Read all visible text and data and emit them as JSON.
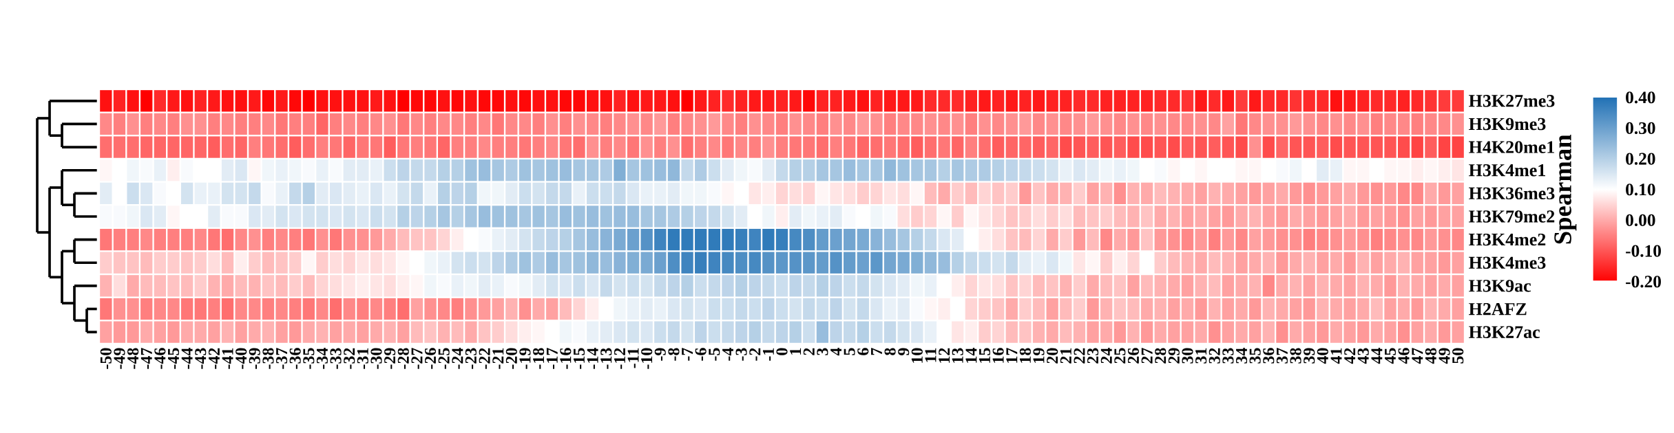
{
  "chart_data": {
    "type": "heatmap",
    "categories": [
      "-50",
      "-49",
      "-48",
      "-47",
      "-46",
      "-45",
      "-44",
      "-43",
      "-42",
      "-41",
      "-40",
      "-39",
      "-38",
      "-37",
      "-36",
      "-35",
      "-34",
      "-33",
      "-32",
      "-31",
      "-30",
      "-29",
      "-28",
      "-27",
      "-26",
      "-25",
      "-24",
      "-23",
      "-22",
      "-21",
      "-20",
      "-19",
      "-18",
      "-17",
      "-16",
      "-15",
      "-14",
      "-13",
      "-12",
      "-11",
      "-10",
      "-9",
      "-8",
      "-7",
      "-6",
      "-5",
      "-4",
      "-3",
      "-2",
      "-1",
      "0",
      "1",
      "2",
      "3",
      "4",
      "5",
      "6",
      "7",
      "8",
      "9",
      "10",
      "11",
      "12",
      "13",
      "14",
      "15",
      "16",
      "17",
      "18",
      "19",
      "20",
      "21",
      "22",
      "23",
      "24",
      "25",
      "26",
      "27",
      "28",
      "29",
      "30",
      "31",
      "32",
      "33",
      "34",
      "35",
      "36",
      "37",
      "38",
      "39",
      "40",
      "41",
      "42",
      "43",
      "44",
      "45",
      "46",
      "47",
      "48",
      "49",
      "50"
    ],
    "y_categories": [
      "H3K27me3",
      "H3K9me3",
      "H4K20me1",
      "H3K4me1",
      "H3K36me3",
      "H3K79me2",
      "H3K4me2",
      "H3K4me3",
      "H3K9ac",
      "H2AFZ",
      "H3K27ac"
    ],
    "cells": [
      [
        -0.18,
        -0.16,
        -0.18,
        -0.2,
        -0.15,
        -0.17,
        -0.18,
        -0.16,
        -0.17,
        -0.18,
        -0.18,
        -0.17,
        -0.19,
        -0.17,
        -0.19,
        -0.2,
        -0.18,
        -0.18,
        -0.18,
        -0.18,
        -0.17,
        -0.18,
        -0.2,
        -0.19,
        -0.19,
        -0.18,
        -0.19,
        -0.18,
        -0.19,
        -0.19,
        -0.18,
        -0.19,
        -0.18,
        -0.18,
        -0.19,
        -0.19,
        -0.18,
        -0.18,
        -0.16,
        -0.18,
        -0.17,
        -0.17,
        -0.18,
        -0.2,
        -0.17,
        -0.16,
        -0.15,
        -0.16,
        -0.17,
        -0.17,
        -0.16,
        -0.17,
        -0.19,
        -0.16,
        -0.16,
        -0.17,
        -0.18,
        -0.16,
        -0.17,
        -0.17,
        -0.17,
        -0.15,
        -0.15,
        -0.15,
        -0.16,
        -0.17,
        -0.16,
        -0.17,
        -0.16,
        -0.17,
        -0.16,
        -0.16,
        -0.15,
        -0.15,
        -0.16,
        -0.16,
        -0.16,
        -0.16,
        -0.15,
        -0.15,
        -0.14,
        -0.17,
        -0.15,
        -0.17,
        -0.13,
        -0.17,
        -0.15,
        -0.15,
        -0.14,
        -0.15,
        -0.15,
        -0.18,
        -0.17,
        -0.16,
        -0.15,
        -0.15,
        -0.16,
        -0.15,
        -0.14,
        -0.13,
        -0.13
      ],
      [
        -0.04,
        -0.05,
        -0.03,
        -0.05,
        -0.04,
        -0.05,
        -0.03,
        -0.03,
        -0.05,
        -0.04,
        -0.05,
        -0.05,
        -0.04,
        -0.06,
        -0.05,
        -0.05,
        -0.08,
        -0.05,
        -0.04,
        -0.05,
        -0.04,
        -0.03,
        -0.06,
        -0.04,
        -0.05,
        -0.04,
        -0.04,
        -0.05,
        -0.04,
        -0.06,
        -0.04,
        -0.04,
        -0.05,
        -0.03,
        -0.05,
        -0.03,
        -0.04,
        -0.05,
        -0.04,
        -0.03,
        -0.04,
        -0.02,
        -0.05,
        -0.04,
        -0.03,
        -0.02,
        -0.04,
        -0.05,
        -0.03,
        -0.04,
        -0.05,
        -0.03,
        -0.04,
        -0.05,
        -0.03,
        -0.04,
        -0.02,
        -0.03,
        -0.05,
        -0.04,
        -0.04,
        -0.03,
        -0.04,
        -0.03,
        -0.05,
        -0.03,
        -0.04,
        -0.03,
        -0.02,
        -0.04,
        -0.03,
        -0.04,
        -0.03,
        -0.02,
        -0.03,
        -0.04,
        -0.03,
        -0.04,
        -0.03,
        -0.04,
        -0.04,
        -0.03,
        -0.04,
        -0.01,
        -0.06,
        -0.04,
        -0.03,
        -0.03,
        -0.02,
        -0.03,
        -0.04,
        -0.03,
        -0.04,
        -0.03,
        -0.05,
        -0.04,
        -0.04,
        -0.05,
        -0.04,
        -0.04,
        -0.03
      ],
      [
        -0.07,
        -0.07,
        -0.07,
        -0.08,
        -0.08,
        -0.08,
        -0.08,
        -0.08,
        -0.09,
        -0.07,
        -0.08,
        -0.05,
        -0.06,
        -0.07,
        -0.09,
        -0.07,
        -0.05,
        -0.06,
        -0.08,
        -0.06,
        -0.06,
        -0.09,
        -0.06,
        -0.05,
        -0.06,
        -0.08,
        -0.05,
        -0.05,
        -0.04,
        -0.05,
        -0.05,
        -0.06,
        -0.05,
        -0.04,
        -0.06,
        -0.07,
        -0.03,
        -0.05,
        -0.04,
        -0.06,
        -0.03,
        -0.05,
        -0.03,
        -0.07,
        -0.05,
        -0.04,
        -0.06,
        -0.04,
        -0.05,
        -0.03,
        -0.05,
        -0.06,
        -0.06,
        -0.07,
        -0.05,
        -0.06,
        -0.08,
        -0.07,
        -0.06,
        -0.07,
        -0.09,
        -0.07,
        -0.06,
        -0.08,
        -0.05,
        -0.07,
        -0.09,
        -0.08,
        -0.08,
        -0.09,
        -0.08,
        -0.11,
        -0.1,
        -0.09,
        -0.1,
        -0.09,
        -0.11,
        -0.11,
        -0.1,
        -0.11,
        -0.09,
        -0.1,
        -0.09,
        -0.1,
        -0.11,
        -0.03,
        -0.11,
        -0.08,
        -0.1,
        -0.1,
        -0.09,
        -0.11,
        -0.1,
        -0.1,
        -0.1,
        -0.1,
        -0.11,
        -0.12,
        -0.09,
        -0.12,
        -0.12
      ],
      [
        0.09,
        0.1,
        0.12,
        0.11,
        0.13,
        0.08,
        0.11,
        0.1,
        0.1,
        0.14,
        0.15,
        0.09,
        0.12,
        0.13,
        0.12,
        0.11,
        0.13,
        0.11,
        0.14,
        0.14,
        0.13,
        0.17,
        0.19,
        0.18,
        0.18,
        0.2,
        0.2,
        0.23,
        0.24,
        0.22,
        0.21,
        0.23,
        0.22,
        0.23,
        0.24,
        0.22,
        0.22,
        0.21,
        0.27,
        0.22,
        0.23,
        0.24,
        0.25,
        0.18,
        0.21,
        0.17,
        0.14,
        0.12,
        0.11,
        0.14,
        0.18,
        0.2,
        0.2,
        0.22,
        0.22,
        0.24,
        0.22,
        0.22,
        0.25,
        0.23,
        0.22,
        0.22,
        0.2,
        0.22,
        0.21,
        0.21,
        0.2,
        0.19,
        0.18,
        0.17,
        0.16,
        0.13,
        0.15,
        0.14,
        0.12,
        0.13,
        0.12,
        0.1,
        0.11,
        0.09,
        0.1,
        0.09,
        0.1,
        0.1,
        0.09,
        0.09,
        0.1,
        0.11,
        0.12,
        0.1,
        0.14,
        0.13,
        0.09,
        0.09,
        0.1,
        0.09,
        0.09,
        0.08,
        0.09,
        0.08,
        0.07
      ],
      [
        0.14,
        0.1,
        0.17,
        0.15,
        0.11,
        0.1,
        0.16,
        0.13,
        0.13,
        0.16,
        0.16,
        0.18,
        0.11,
        0.13,
        0.18,
        0.2,
        0.14,
        0.15,
        0.14,
        0.13,
        0.15,
        0.13,
        0.16,
        0.18,
        0.13,
        0.2,
        0.19,
        0.2,
        0.12,
        0.12,
        0.14,
        0.17,
        0.16,
        0.18,
        0.18,
        0.13,
        0.17,
        0.17,
        0.18,
        0.15,
        0.13,
        0.13,
        0.14,
        0.12,
        0.12,
        0.11,
        0.09,
        0.1,
        0.07,
        0.08,
        0.05,
        0.06,
        0.05,
        0.09,
        0.07,
        0.06,
        0.04,
        0.05,
        0.07,
        0.06,
        0.09,
        0.02,
        0.0,
        0.04,
        0.02,
        0.05,
        0.03,
        0.04,
        -0.02,
        0.03,
        0.0,
        0.01,
        0.04,
        -0.01,
        0.01,
        -0.03,
        0.01,
        0.0,
        0.02,
        0.01,
        0.0,
        -0.01,
        0.01,
        0.0,
        -0.01,
        -0.02,
        -0.01,
        0.0,
        -0.02,
        -0.03,
        -0.02,
        -0.01,
        0.0,
        -0.02,
        -0.03,
        -0.02,
        -0.04,
        -0.04,
        0.0,
        -0.02,
        -0.01
      ],
      [
        0.11,
        0.11,
        0.12,
        0.15,
        0.14,
        0.09,
        0.1,
        0.1,
        0.14,
        0.11,
        0.11,
        0.15,
        0.14,
        0.16,
        0.15,
        0.16,
        0.16,
        0.15,
        0.16,
        0.15,
        0.17,
        0.16,
        0.2,
        0.19,
        0.2,
        0.22,
        0.2,
        0.22,
        0.24,
        0.23,
        0.23,
        0.22,
        0.23,
        0.22,
        0.24,
        0.23,
        0.24,
        0.23,
        0.24,
        0.24,
        0.22,
        0.22,
        0.21,
        0.2,
        0.19,
        0.18,
        0.16,
        0.14,
        0.1,
        0.12,
        0.08,
        0.14,
        0.12,
        0.13,
        0.14,
        0.11,
        0.1,
        0.12,
        0.11,
        0.06,
        0.04,
        0.05,
        0.09,
        0.04,
        0.09,
        0.07,
        0.05,
        0.03,
        0.04,
        0.06,
        0.04,
        0.06,
        0.02,
        0.03,
        0.04,
        0.02,
        0.01,
        0.03,
        0.0,
        0.01,
        -0.01,
        0.0,
        -0.01,
        -0.02,
        0.0,
        0.01,
        -0.01,
        -0.02,
        0.0,
        -0.01,
        -0.02,
        -0.01,
        0.0,
        -0.02,
        -0.01,
        -0.02,
        -0.03,
        -0.01,
        -0.02,
        -0.01,
        -0.01
      ],
      [
        -0.06,
        -0.05,
        -0.05,
        -0.04,
        -0.05,
        -0.05,
        -0.05,
        -0.04,
        -0.06,
        -0.07,
        -0.04,
        -0.03,
        -0.05,
        -0.04,
        -0.05,
        -0.06,
        -0.03,
        -0.06,
        -0.03,
        -0.03,
        -0.02,
        0.0,
        0.02,
        0.03,
        0.03,
        0.05,
        0.08,
        0.1,
        0.11,
        0.13,
        0.14,
        0.16,
        0.18,
        0.19,
        0.2,
        0.22,
        0.24,
        0.26,
        0.28,
        0.3,
        0.33,
        0.36,
        0.38,
        0.38,
        0.38,
        0.38,
        0.38,
        0.37,
        0.36,
        0.38,
        0.37,
        0.35,
        0.34,
        0.31,
        0.3,
        0.29,
        0.28,
        0.26,
        0.24,
        0.22,
        0.2,
        0.18,
        0.15,
        0.14,
        0.1,
        0.08,
        0.06,
        0.03,
        0.02,
        0.05,
        0.0,
        0.04,
        -0.02,
        0.02,
        -0.04,
        0.0,
        -0.02,
        0.03,
        -0.02,
        -0.03,
        -0.04,
        -0.02,
        -0.05,
        -0.02,
        -0.04,
        -0.01,
        -0.02,
        -0.03,
        -0.03,
        -0.05,
        -0.04,
        -0.03,
        -0.02,
        -0.03,
        -0.05,
        -0.04,
        -0.03,
        -0.04,
        -0.02,
        -0.03,
        -0.04
      ],
      [
        0.04,
        0.03,
        0.03,
        0.02,
        0.04,
        0.04,
        0.03,
        0.04,
        0.06,
        0.02,
        0.08,
        0.04,
        0.02,
        0.03,
        0.04,
        0.09,
        0.04,
        0.06,
        0.05,
        0.07,
        0.06,
        0.07,
        0.09,
        0.1,
        0.12,
        0.13,
        0.16,
        0.17,
        0.16,
        0.19,
        0.21,
        0.23,
        0.21,
        0.24,
        0.22,
        0.23,
        0.25,
        0.24,
        0.26,
        0.27,
        0.28,
        0.3,
        0.34,
        0.36,
        0.37,
        0.36,
        0.35,
        0.34,
        0.35,
        0.33,
        0.32,
        0.33,
        0.32,
        0.31,
        0.33,
        0.31,
        0.3,
        0.32,
        0.29,
        0.28,
        0.27,
        0.25,
        0.24,
        0.2,
        0.18,
        0.17,
        0.16,
        0.18,
        0.14,
        0.13,
        0.15,
        0.12,
        0.07,
        0.09,
        0.04,
        0.08,
        0.05,
        0.1,
        0.04,
        0.02,
        0.01,
        0.0,
        0.02,
        0.01,
        -0.01,
        0.0,
        0.01,
        -0.02,
        0.0,
        0.01,
        -0.01,
        0.0,
        -0.02,
        0.01,
        -0.01,
        0.0,
        0.01,
        -0.01,
        -0.01,
        -0.02,
        -0.01
      ],
      [
        0.01,
        0.06,
        0.0,
        0.02,
        0.02,
        0.03,
        0.02,
        0.04,
        0.01,
        0.0,
        0.02,
        0.01,
        0.03,
        0.02,
        0.04,
        0.02,
        0.05,
        0.06,
        0.07,
        0.08,
        0.07,
        0.06,
        0.08,
        0.09,
        0.12,
        0.11,
        0.13,
        0.12,
        0.14,
        0.13,
        0.11,
        0.12,
        0.14,
        0.16,
        0.15,
        0.17,
        0.15,
        0.18,
        0.16,
        0.17,
        0.16,
        0.18,
        0.19,
        0.2,
        0.17,
        0.18,
        0.19,
        0.2,
        0.19,
        0.18,
        0.17,
        0.19,
        0.18,
        0.2,
        0.19,
        0.17,
        0.18,
        0.16,
        0.15,
        0.14,
        0.12,
        0.13,
        0.1,
        0.08,
        0.05,
        0.07,
        0.06,
        0.03,
        0.05,
        0.02,
        0.03,
        0.01,
        0.04,
        0.0,
        0.02,
        0.03,
        -0.01,
        0.02,
        0.01,
        0.0,
        -0.01,
        0.01,
        0.02,
        -0.01,
        0.0,
        0.01,
        -0.04,
        0.0,
        0.01,
        -0.01,
        0.01,
        0.0,
        -0.01,
        0.01,
        0.0,
        -0.02,
        0.01,
        0.0,
        -0.01,
        0.0,
        -0.01
      ],
      [
        -0.06,
        -0.03,
        -0.03,
        -0.05,
        -0.04,
        -0.04,
        -0.06,
        -0.06,
        -0.05,
        -0.07,
        -0.04,
        -0.04,
        -0.05,
        -0.04,
        -0.05,
        -0.06,
        -0.04,
        -0.07,
        -0.04,
        -0.05,
        -0.04,
        -0.05,
        -0.07,
        -0.01,
        -0.03,
        -0.04,
        -0.05,
        -0.03,
        -0.02,
        -0.01,
        0.01,
        -0.03,
        0.0,
        -0.01,
        0.02,
        0.05,
        0.08,
        0.1,
        0.12,
        0.13,
        0.14,
        0.13,
        0.15,
        0.16,
        0.15,
        0.17,
        0.17,
        0.18,
        0.17,
        0.19,
        0.17,
        0.16,
        0.18,
        0.17,
        0.19,
        0.16,
        0.18,
        0.15,
        0.13,
        0.14,
        0.11,
        0.09,
        0.08,
        0.1,
        0.05,
        0.04,
        0.03,
        0.0,
        0.04,
        0.02,
        -0.01,
        0.02,
        0.04,
        -0.02,
        0.01,
        0.03,
        0.02,
        0.0,
        0.01,
        -0.01,
        0.0,
        -0.02,
        0.01,
        -0.01,
        0.0,
        -0.02,
        0.01,
        0.0,
        -0.01,
        -0.02,
        0.01,
        0.0,
        -0.01,
        0.0,
        0.02,
        -0.01,
        0.0,
        -0.02,
        0.01,
        0.0,
        -0.01
      ],
      [
        -0.01,
        -0.02,
        -0.02,
        0.0,
        -0.01,
        -0.02,
        0.0,
        0.0,
        -0.01,
        0.01,
        -0.01,
        0.0,
        0.01,
        -0.01,
        -0.02,
        0.0,
        0.01,
        -0.01,
        0.0,
        -0.01,
        0.0,
        0.01,
        -0.01,
        0.02,
        0.03,
        0.01,
        0.02,
        0.0,
        0.03,
        0.04,
        0.06,
        0.08,
        0.09,
        0.1,
        0.12,
        0.11,
        0.13,
        0.14,
        0.15,
        0.16,
        0.15,
        0.17,
        0.18,
        0.16,
        0.19,
        0.17,
        0.18,
        0.19,
        0.2,
        0.18,
        0.19,
        0.2,
        0.17,
        0.24,
        0.19,
        0.18,
        0.2,
        0.17,
        0.18,
        0.16,
        0.15,
        0.13,
        0.1,
        0.07,
        0.08,
        0.04,
        0.05,
        0.02,
        0.03,
        0.01,
        0.0,
        0.02,
        0.01,
        -0.01,
        0.0,
        -0.02,
        0.01,
        -0.02,
        0.0,
        -0.01,
        -0.01,
        0.0,
        -0.03,
        -0.01,
        0.0,
        -0.01,
        0.01,
        -0.03,
        0.0,
        -0.01,
        -0.02,
        0.0,
        -0.01,
        -0.02,
        0.0,
        -0.01,
        -0.03,
        -0.01,
        0.0,
        -0.02,
        -0.01
      ]
    ],
    "clim": [
      -0.2,
      0.4
    ],
    "cticks": [
      {
        "value": -0.2,
        "label": "-0.20"
      },
      {
        "value": -0.1,
        "label": "-0.10"
      },
      {
        "value": 0,
        "label": "0.00"
      },
      {
        "value": 0.1,
        "label": "0.10"
      },
      {
        "value": 0.2,
        "label": "0.20"
      },
      {
        "value": 0.3,
        "label": "0.30"
      },
      {
        "value": 0.4,
        "label": "0.40"
      }
    ],
    "clabel": "Spearman"
  }
}
